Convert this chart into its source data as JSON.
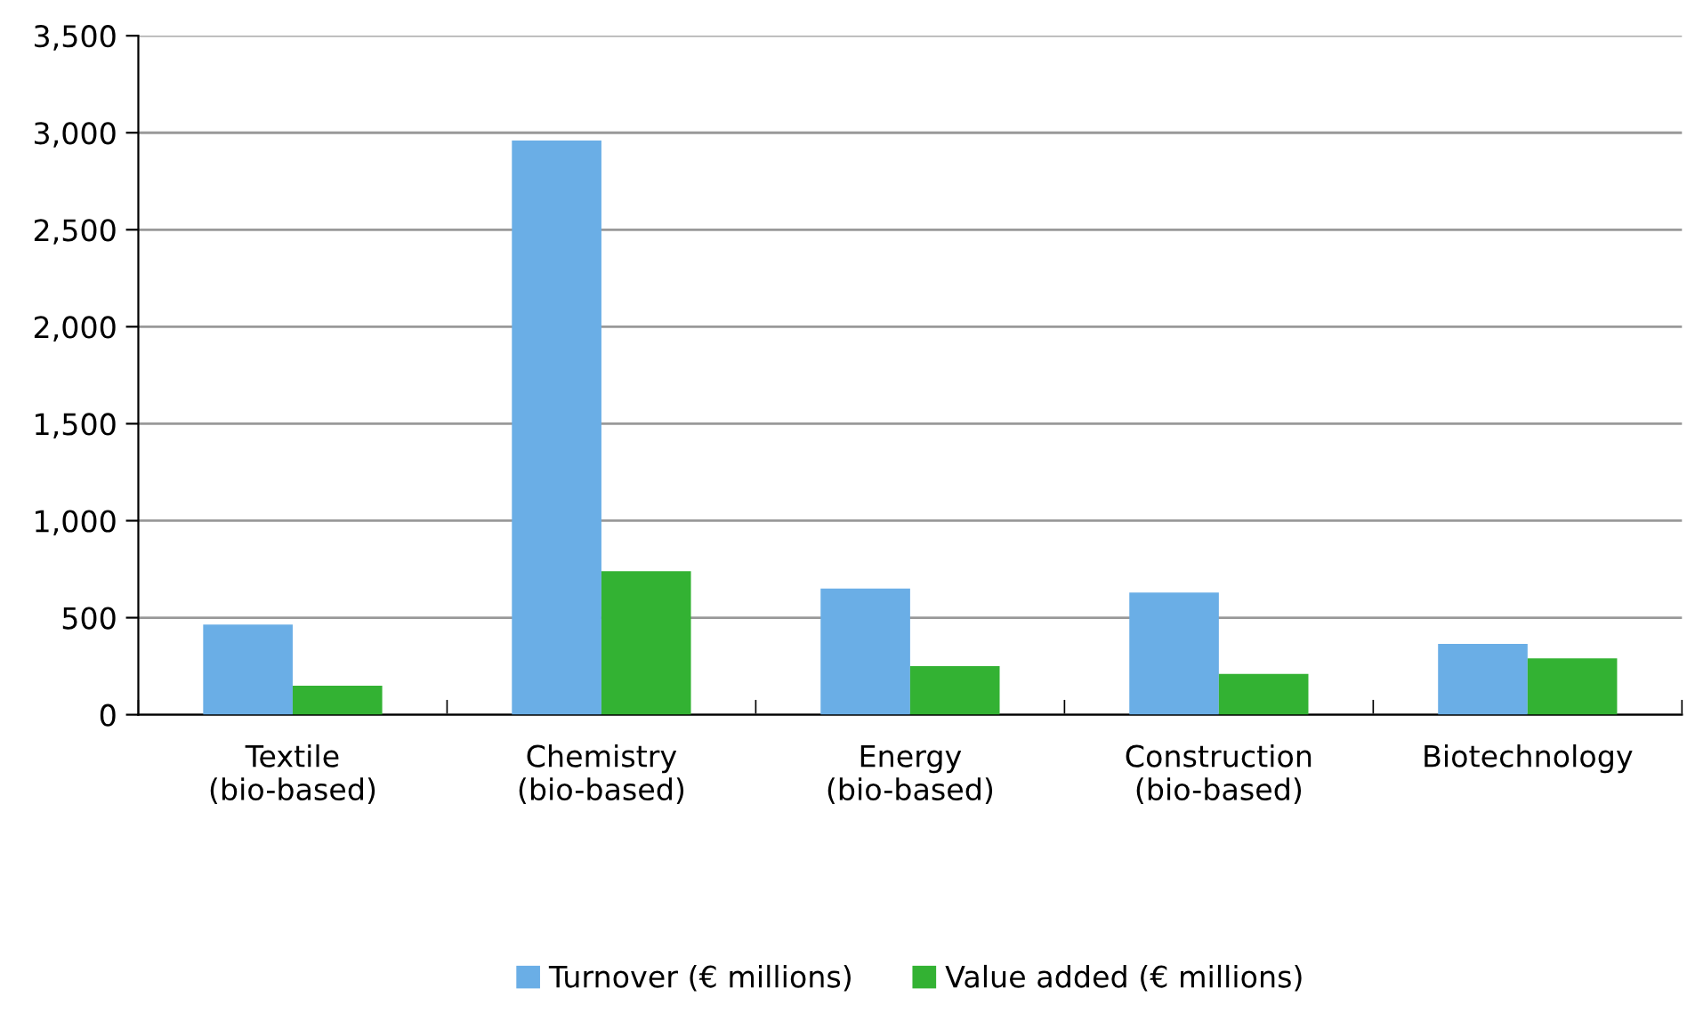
{
  "chart_data": {
    "type": "bar",
    "categories": [
      "Textile\n(bio-based)",
      "Chemistry\n(bio-based)",
      "Energy\n(bio-based)",
      "Construction\n(bio-based)",
      "Biotechnology"
    ],
    "series": [
      {
        "name": "Turnover (€ millions)",
        "color": "#6aaee6",
        "values": [
          465,
          2960,
          650,
          630,
          365
        ]
      },
      {
        "name": "Value added (€ millions)",
        "color": "#33b233",
        "values": [
          150,
          740,
          250,
          210,
          290
        ]
      }
    ],
    "ylim": [
      0,
      3500
    ],
    "yticks": [
      0,
      500,
      {
        "value": 1000,
        "label": "1,000"
      },
      {
        "value": 1500,
        "label": "1,500"
      },
      {
        "value": 2000,
        "label": "2,000"
      },
      {
        "value": 2500,
        "label": "2,500"
      },
      {
        "value": 3000,
        "label": "3,000"
      },
      {
        "value": 3500,
        "label": "3,500"
      }
    ],
    "grid": "y",
    "legend": "bottom"
  }
}
